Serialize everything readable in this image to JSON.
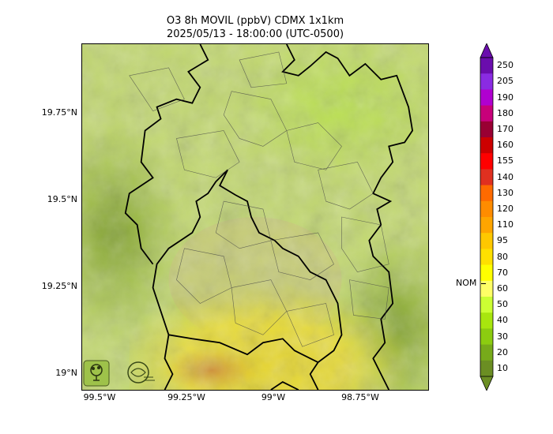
{
  "title": {
    "line1": "O3 8h MOVIL (ppbV) CDMX 1x1km",
    "line2": "2025/05/13 - 18:00:00 (UTC-0500)"
  },
  "map": {
    "lat_ticks": [
      "19.75°N",
      "19.5°N",
      "19.25°N",
      "19°N"
    ],
    "lon_ticks": [
      "99.5°W",
      "99.25°W",
      "99°W",
      "98.75°W"
    ]
  },
  "colorbar": {
    "labels": [
      "250",
      "205",
      "190",
      "180",
      "170",
      "160",
      "155",
      "140",
      "130",
      "120",
      "110",
      "95",
      "80",
      "70",
      "60",
      "50",
      "40",
      "30",
      "20",
      "10"
    ],
    "colors": [
      "#6a0dad",
      "#8a2be2",
      "#b000d0",
      "#c8007a",
      "#990033",
      "#cc0000",
      "#ff0000",
      "#e03020",
      "#ff6a00",
      "#ff8c00",
      "#ffa500",
      "#ffc800",
      "#ffe000",
      "#ffff00",
      "#ffff66",
      "#ccff33",
      "#a8e60e",
      "#8ccc10",
      "#77aa1a",
      "#6b8e23"
    ],
    "nom_label": "NOM"
  },
  "logos": {
    "left": "SEDEMA",
    "right": "CALIDAD DEL AIRE"
  }
}
